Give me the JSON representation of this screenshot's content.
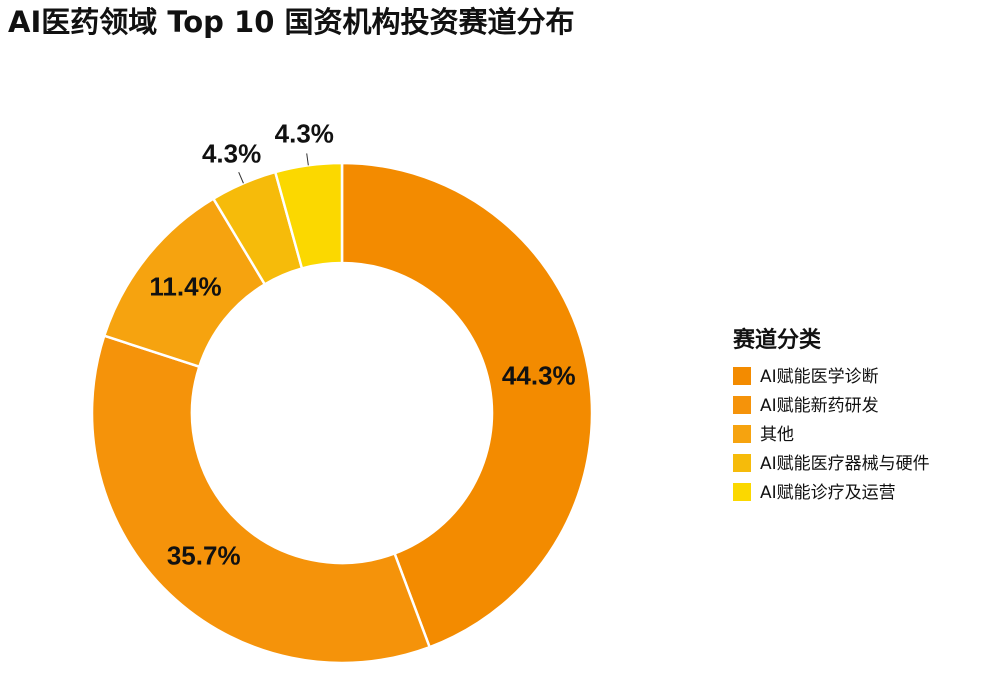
{
  "chart_data": {
    "type": "donut",
    "title": "AI医药领域 Top 10 国资机构投资赛道分布",
    "legend_title": "赛道分类",
    "categories": [
      "AI赋能医学诊断",
      "AI赋能新药研发",
      "其他",
      "AI赋能医疗器械与硬件",
      "AI赋能诊疗及运营"
    ],
    "values": [
      44.3,
      35.7,
      11.4,
      4.3,
      4.3
    ],
    "value_labels": [
      "44.3%",
      "35.7%",
      "11.4%",
      "4.3%",
      "4.3%"
    ],
    "colors": [
      "#f38b00",
      "#f5930a",
      "#f6a30f",
      "#f6bb0a",
      "#fbd800"
    ],
    "legend": "right"
  }
}
